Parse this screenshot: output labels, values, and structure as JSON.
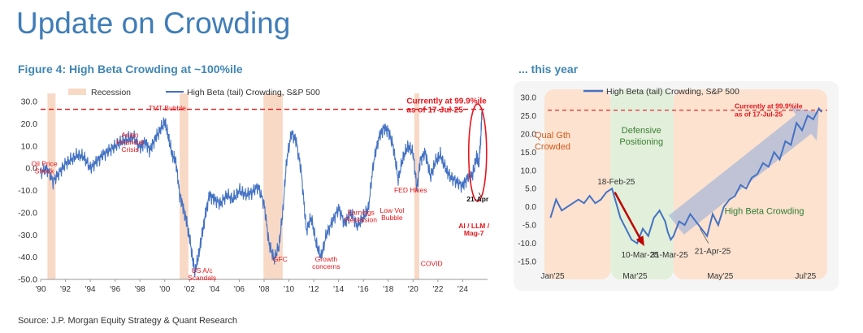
{
  "page_title": "Update on Crowding",
  "source": "Source: J.P. Morgan Equity Strategy & Quant Research",
  "colors": {
    "title": "#3F7DB8",
    "figure_title": "#3F86B5",
    "series": "#4472C4",
    "recession": "#F8D9C6",
    "red": "#E8141B"
  },
  "chart_data": [
    {
      "type": "line",
      "title": "Figure 4: High Beta Crowding at ~100%ile",
      "xlabel": "",
      "ylabel": "",
      "x_range": [
        1990,
        2026
      ],
      "ylim": [
        -50,
        30
      ],
      "y_ticks": [
        30,
        20,
        10,
        0,
        -10,
        -20,
        -30,
        -40,
        -50
      ],
      "y_tick_labels": [
        "30.0",
        "20.0",
        "10.0",
        "0.0",
        "-10.0",
        "-20.0",
        "-30.0",
        "-40.0",
        "-50.0"
      ],
      "x_ticks": [
        1990,
        1992,
        1994,
        1996,
        1998,
        2000,
        2002,
        2004,
        2006,
        2008,
        2010,
        2012,
        2014,
        2016,
        2018,
        2020,
        2022,
        2024
      ],
      "x_tick_labels": [
        "'90",
        "'92",
        "'94",
        "'96",
        "'98",
        "'00",
        "'02",
        "'04",
        "'06",
        "'08",
        "'10",
        "'12",
        "'14",
        "'16",
        "'18",
        "'20",
        "'22",
        "'24"
      ],
      "legend": {
        "placement": "top-left",
        "recession_label": "Recession",
        "series_label": "High Beta (tail) Crowding, S&P 500"
      },
      "reference_line": 26.5,
      "recessions": [
        [
          1990.55,
          1991.2
        ],
        [
          2001.2,
          2001.9
        ],
        [
          2007.95,
          2009.5
        ],
        [
          2020.1,
          2020.5
        ]
      ],
      "series": [
        {
          "name": "High Beta (tail) Crowding, S&P 500",
          "x": [
            1990,
            1990.5,
            1991,
            1991.5,
            1992,
            1992.5,
            1993,
            1993.5,
            1994,
            1994.5,
            1995,
            1995.5,
            1996,
            1996.5,
            1997,
            1997.5,
            1998,
            1998.4,
            1998.8,
            1999.2,
            1999.6,
            2000,
            2000.3,
            2000.6,
            2000.9,
            2001.2,
            2001.5,
            2001.8,
            2002.1,
            2002.4,
            2002.7,
            2003,
            2003.3,
            2003.6,
            2004,
            2004.5,
            2005,
            2005.5,
            2006,
            2006.5,
            2007,
            2007.5,
            2008,
            2008.4,
            2008.8,
            2009.2,
            2009.5,
            2009.8,
            2010.2,
            2010.6,
            2011,
            2011.4,
            2011.8,
            2012.2,
            2012.6,
            2013,
            2013.5,
            2014,
            2014.5,
            2015,
            2015.5,
            2016,
            2016.4,
            2016.8,
            2017.2,
            2017.6,
            2018,
            2018.4,
            2018.8,
            2019.2,
            2019.6,
            2020,
            2020.3,
            2020.6,
            2021,
            2021.4,
            2021.8,
            2022.2,
            2022.6,
            2023,
            2023.5,
            2024,
            2024.4,
            2024.8,
            2025.1,
            2025.3,
            2025.45,
            2025.55
          ],
          "y": [
            -2,
            0,
            -6,
            -2,
            2,
            4,
            6,
            5,
            0,
            3,
            6,
            8,
            10,
            12,
            13,
            14,
            9,
            12,
            8,
            13,
            17,
            21,
            14,
            6,
            3,
            -12,
            -18,
            -25,
            -35,
            -47,
            -40,
            -30,
            -20,
            -12,
            -14,
            -16,
            -12,
            -14,
            -10,
            -12,
            -11,
            -8,
            -16,
            -34,
            -41,
            -35,
            -20,
            3,
            16,
            12,
            -2,
            -28,
            -22,
            -34,
            -40,
            -30,
            -24,
            -18,
            -25,
            -20,
            -26,
            -22,
            -18,
            2,
            13,
            18,
            17,
            10,
            -5,
            5,
            10,
            7,
            -9,
            4,
            7,
            -4,
            3,
            6,
            0,
            -4,
            -6,
            -8,
            -4,
            -3,
            5,
            2,
            13,
            26
          ]
        }
      ],
      "annotations": [
        {
          "text": "Oil Price Shock",
          "x": 1990.3,
          "y": 1
        },
        {
          "text": "Asian Financial Crisis",
          "x": 1997.2,
          "y": 14
        },
        {
          "text": "TMT Bubble",
          "x": 2000.2,
          "y": 26
        },
        {
          "text": "US A/c Scandals",
          "x": 2003.0,
          "y": -47
        },
        {
          "text": "GFC",
          "x": 2009.3,
          "y": -42
        },
        {
          "text": "Growth concerns",
          "x": 2013.0,
          "y": -42
        },
        {
          "text": "Earnings Recession",
          "x": 2015.8,
          "y": -21
        },
        {
          "text": "Low Vol Bubble",
          "x": 2018.3,
          "y": -20
        },
        {
          "text": "FED Hikes",
          "x": 2019.8,
          "y": -11
        },
        {
          "text": "COVID",
          "x": 2021.5,
          "y": -44
        },
        {
          "text": "AI / LLM / Mag-7",
          "x": 2024.9,
          "y": -27
        },
        {
          "text": "Currently at 99.9%ile as of 17-Jul-25",
          "x": 2020.0,
          "y": 29
        },
        {
          "text": "21-Apr",
          "x": 2025.2,
          "y": -15
        }
      ]
    },
    {
      "type": "line",
      "title": "... this year",
      "xlabel": "",
      "ylabel": "",
      "x_range": [
        0,
        200
      ],
      "ylim": [
        -15,
        30
      ],
      "y_ticks": [
        30,
        25,
        20,
        15,
        10,
        5,
        0,
        -5,
        -10,
        -15
      ],
      "y_tick_labels": [
        "30.0",
        "25.0",
        "20.0",
        "15.0",
        "10.0",
        "5.0",
        "0.0",
        "-5.0",
        "-10.0",
        "-15.0"
      ],
      "x_ticks": [
        0,
        59,
        120,
        181
      ],
      "x_tick_labels": [
        "Jan'25",
        "Mar'25",
        "May'25",
        "Jul'25"
      ],
      "legend": {
        "placement": "top",
        "series_label": "High Beta (tail) Crowding, S&P 500"
      },
      "reference_line": 26.5,
      "regions": [
        {
          "label": "Qual Gth Crowded",
          "x_range": [
            0,
            45
          ],
          "color": "#FCE2CF"
        },
        {
          "label": "Defensive Positioning",
          "x_range": [
            45,
            90
          ],
          "color": "#E2EFDA"
        },
        {
          "label": "High Beta Crowding",
          "x_range": [
            90,
            200
          ],
          "color": "#FCE2CF"
        }
      ],
      "series": [
        {
          "name": "High Beta (tail) Crowding, S&P 500",
          "x": [
            2,
            6,
            10,
            14,
            18,
            22,
            26,
            30,
            34,
            38,
            42,
            46,
            49,
            52,
            56,
            60,
            64,
            68,
            72,
            76,
            80,
            84,
            86,
            88,
            90,
            94,
            98,
            102,
            106,
            110,
            114,
            118,
            122,
            126,
            130,
            134,
            138,
            142,
            146,
            150,
            154,
            158,
            162,
            166,
            170,
            174,
            178,
            182,
            186,
            190,
            194,
            196
          ],
          "y": [
            -3,
            2,
            -1,
            0,
            1,
            2,
            1,
            3,
            1,
            2,
            4,
            5,
            1,
            -3,
            -6,
            -9,
            -10,
            -6,
            -8,
            -3,
            -1,
            -4,
            -7,
            -9,
            -8,
            -4,
            -5,
            -2,
            -4,
            -6,
            -8,
            -2,
            -5,
            0,
            2,
            3,
            6,
            5,
            8,
            9,
            12,
            11,
            15,
            13,
            18,
            17,
            23,
            21,
            25,
            24,
            27,
            26
          ]
        }
      ],
      "arrows": [
        {
          "from": [
            48,
            4
          ],
          "to": [
            68,
            -10
          ],
          "color": "#C00000"
        },
        {
          "from": [
            92,
            -5
          ],
          "to": [
            194,
            26
          ],
          "color": "#8EA9DB"
        }
      ],
      "annotations": [
        {
          "text": "18-Feb-25",
          "x": 49,
          "y": 7
        },
        {
          "text": "10-Mar-25",
          "x": 66,
          "y": -13
        },
        {
          "text": "31-Mar-25",
          "x": 87,
          "y": -13
        },
        {
          "text": "21-Apr-25",
          "x": 118,
          "y": -12
        },
        {
          "text": "Currently at 99.9%ile as of 17-Jul-25",
          "x": 150,
          "y": 23
        }
      ]
    }
  ]
}
